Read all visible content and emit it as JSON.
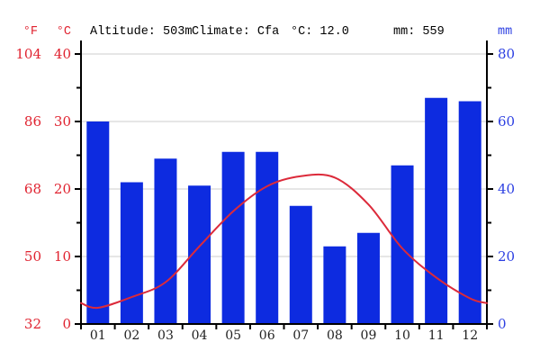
{
  "header": {
    "f_label": "°F",
    "c_label": "°C",
    "mm_label": "mm",
    "altitude": "Altitude: 503m",
    "climate": "Climate: Cfa",
    "mean_temp": "°C: 12.0",
    "total_precip": "mm: 559"
  },
  "colors": {
    "bar_blue": "#0d2be0",
    "line_red": "#dc2a3a",
    "red_text": "#e02330",
    "blue_text": "#2c3fe2",
    "gridline": "#cccccc",
    "axis": "#000000",
    "xlabel": "#222222"
  },
  "chart_data": {
    "type": "combo",
    "title": "Climate chart (climogram): Altitude 503m, Climate Cfa, mean 12.0 °C, total 559 mm",
    "categories": [
      "01",
      "02",
      "03",
      "04",
      "05",
      "06",
      "07",
      "08",
      "09",
      "10",
      "11",
      "12"
    ],
    "series": [
      {
        "name": "precipitation_mm",
        "type": "bar",
        "values": [
          60,
          42,
          49,
          41,
          51,
          51,
          35,
          23,
          27,
          47,
          67,
          66
        ]
      },
      {
        "name": "temperature_c",
        "type": "line",
        "values": [
          2.4,
          4.0,
          6.2,
          11.5,
          16.7,
          20.4,
          21.9,
          21.7,
          17.7,
          11.2,
          6.9,
          3.8
        ]
      }
    ],
    "axes": {
      "left_f": {
        "label": "°F",
        "ticks": [
          104,
          86,
          68,
          50,
          32
        ]
      },
      "left_c": {
        "label": "°C",
        "ticks": [
          40,
          30,
          20,
          10,
          0
        ],
        "range": [
          0,
          40
        ],
        "minor_step": 5
      },
      "right_mm": {
        "label": "mm",
        "ticks": [
          80,
          60,
          40,
          20,
          0
        ],
        "range": [
          0,
          80
        ],
        "minor_step": 10
      }
    },
    "grid": true,
    "legend": "none"
  }
}
